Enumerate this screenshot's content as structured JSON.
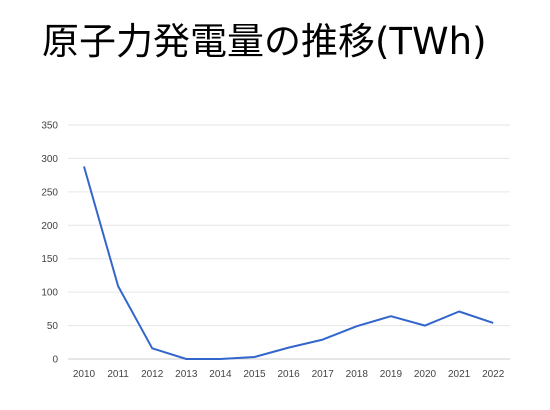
{
  "chart_data": {
    "type": "line",
    "title": "原子力発電量の推移(TWh)",
    "xlabel": "",
    "ylabel": "",
    "x": [
      "2010",
      "2011",
      "2012",
      "2013",
      "2014",
      "2015",
      "2016",
      "2017",
      "2018",
      "2019",
      "2020",
      "2021",
      "2022"
    ],
    "series": [
      {
        "values": [
          288,
          109,
          16,
          0,
          0,
          3,
          17,
          29,
          49,
          64,
          50,
          71,
          54
        ]
      }
    ],
    "ylim": [
      0,
      350
    ],
    "yticks": [
      0,
      50,
      100,
      150,
      200,
      250,
      300,
      350
    ],
    "grid": true,
    "legend": "none",
    "colors": {
      "line": "#3366cc",
      "grid": "#e6e6e6"
    }
  }
}
